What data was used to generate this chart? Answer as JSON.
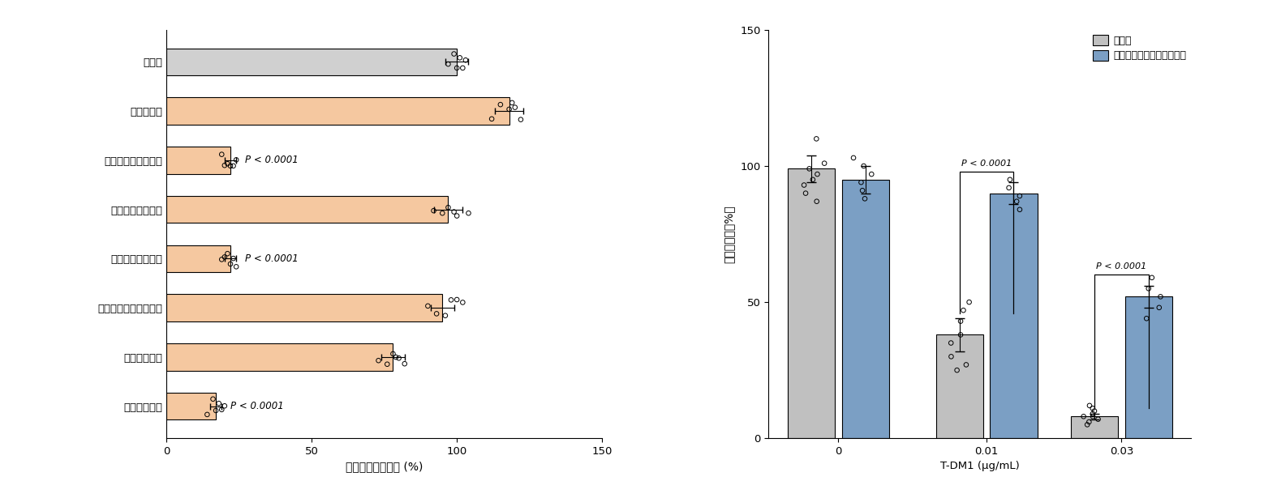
{
  "left_chart": {
    "categories": [
      "対照群",
      "クロロキン",
      "クラリスロマイシン",
      "クリンダマイシン",
      "エリスロマイシン",
      "ヒドロキシクロロキン",
      "イミプラミン",
      "リファブチン"
    ],
    "values": [
      100,
      118,
      22,
      97,
      22,
      95,
      78,
      17
    ],
    "errors": [
      4,
      5,
      2,
      5,
      2,
      4,
      4,
      2
    ],
    "bar_colors": [
      "#d0d0d0",
      "#f5c8a0",
      "#f5c8a0",
      "#f5c8a0",
      "#f5c8a0",
      "#f5c8a0",
      "#f5c8a0",
      "#f5c8a0"
    ],
    "p_value_indices": [
      2,
      4,
      7
    ],
    "p_value_text": "P < 0.0001",
    "xlabel": "相対取り込み活性 (%)",
    "xlim": [
      0,
      150
    ],
    "xticks": [
      0,
      50,
      100,
      150
    ],
    "dot_data": {
      "0": [
        97,
        99,
        101,
        103,
        100,
        102
      ],
      "1": [
        112,
        115,
        118,
        120,
        122,
        119
      ],
      "2": [
        19,
        20,
        22,
        23,
        21,
        24
      ],
      "3": [
        92,
        95,
        97,
        100,
        104,
        99
      ],
      "4": [
        19,
        21,
        22,
        23,
        20,
        24
      ],
      "5": [
        90,
        93,
        96,
        98,
        100,
        102
      ],
      "6": [
        73,
        76,
        78,
        80,
        82,
        79
      ],
      "7": [
        14,
        16,
        17,
        18,
        19,
        20
      ]
    }
  },
  "right_chart": {
    "groups": [
      "0",
      "0.01",
      "0.03"
    ],
    "control_values": [
      99,
      38,
      8
    ],
    "control_errors": [
      5,
      6,
      1
    ],
    "treatment_values": [
      95,
      90,
      52
    ],
    "treatment_errors": [
      5,
      4,
      4
    ],
    "control_color": "#c0c0c0",
    "treatment_color": "#7b9fc4",
    "ylabel": "細胞生存率（%）",
    "xlabel": "T-DM1 (μg/mL)",
    "ylim": [
      0,
      150
    ],
    "yticks": [
      0,
      50,
      100,
      150
    ],
    "p_value_text": "P < 0.0001",
    "legend_labels": [
      "対照群",
      "クラリスロマイシン作用群"
    ],
    "control_dots": {
      "0": [
        87,
        90,
        93,
        95,
        97,
        99,
        101,
        110
      ],
      "1": [
        25,
        27,
        30,
        35,
        38,
        43,
        47,
        50
      ],
      "2": [
        5,
        6,
        7,
        8,
        8,
        9,
        10,
        11,
        12
      ]
    },
    "treatment_dots": {
      "0": [
        88,
        91,
        94,
        97,
        100,
        103
      ],
      "1": [
        84,
        87,
        89,
        92,
        95
      ],
      "2": [
        44,
        48,
        52,
        55,
        59
      ]
    }
  },
  "figure_bg": "#ffffff"
}
